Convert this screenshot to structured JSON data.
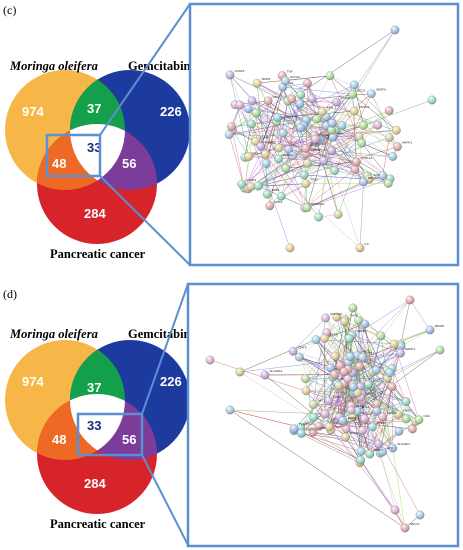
{
  "panels": [
    {
      "label": "(c)",
      "sets": {
        "moringa": "Moringa oleifera",
        "gemcitabine": "Gemcitabine",
        "pancreatic": "Pancreatic cancer"
      },
      "counts": {
        "moringa_only": "974",
        "gemcitabine_only": "226",
        "pancreatic_only": "284",
        "moringa_gemcitabine": "37",
        "moringa_pancreatic": "48",
        "gemcitabine_pancreatic": "56",
        "all_three": "33"
      },
      "highlight": "moringa-pancreatic-all",
      "network_labels": [
        "NCOA1",
        "EGFR",
        "IL6",
        "CASP3",
        "TP53",
        "AKT1",
        "MAPK1",
        "JUN",
        "STAT3",
        "MYC",
        "CCND1",
        "ESR1",
        "VEGFA",
        "PTGS2",
        "MMP9",
        "SRC",
        "HSP90AA1",
        "PIK3CA",
        "BCL2",
        "TNF",
        "ERBB2",
        "CDK4",
        "PPARG",
        "MAPK8",
        "ATM",
        "BRCA1",
        "FGFR2",
        "PLAU",
        "CYP1A1",
        "KDR"
      ]
    },
    {
      "label": "(d)",
      "sets": {
        "moringa": "Moringa oleifera",
        "gemcitabine": "Gemcitabine",
        "pancreatic": "Pancreatic cancer"
      },
      "counts": {
        "moringa_only": "974",
        "gemcitabine_only": "226",
        "pancreatic_only": "284",
        "moringa_gemcitabine": "37",
        "moringa_pancreatic": "48",
        "gemcitabine_pancreatic": "56",
        "all_three": "33"
      },
      "highlight": "gemcitabine-pancreatic-all",
      "network_labels": [
        "RRM1",
        "DCK",
        "TYMS",
        "CDA",
        "SLC29A1",
        "ABCC1",
        "ABCB1",
        "TP53",
        "AKT1",
        "EGFR",
        "KRAS",
        "NFKB1",
        "BCL2",
        "CASP3",
        "MAPK1",
        "STAT3",
        "HIF1A",
        "VEGFA",
        "PIK3CA",
        "MTOR",
        "MYC",
        "CDKN1A",
        "CHEK1",
        "ATR",
        "ERBB2",
        "SRC",
        "JAK2",
        "PTEN",
        "MMP2",
        "PARP1"
      ]
    }
  ],
  "colors": {
    "moringa": "#f6b748",
    "gemcitabine": "#1d3b9e",
    "pancreatic": "#d7232a",
    "moringa_gemcitabine": "#14a04b",
    "moringa_pancreatic": "#ee6a24",
    "gemcitabine_pancreatic": "#7b3c9a",
    "all_three": "#ffffff",
    "highlight_box": "#5b8fd1"
  }
}
